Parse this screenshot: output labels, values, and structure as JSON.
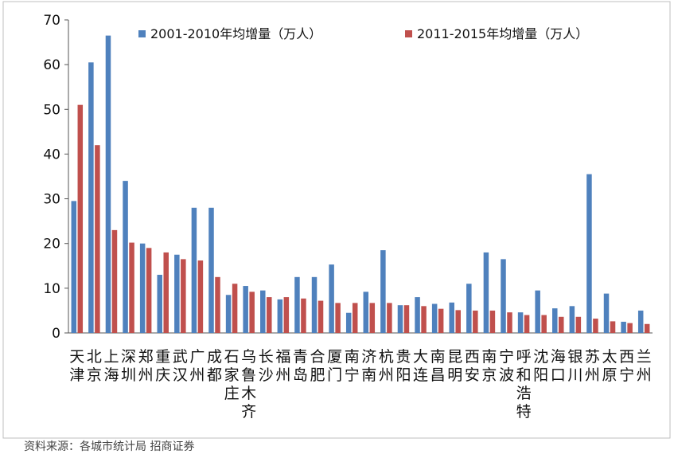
{
  "chart_data": {
    "type": "bar",
    "categories": [
      "天津",
      "北京",
      "上海",
      "深圳",
      "郑州",
      "重庆",
      "武汉",
      "广州",
      "成都",
      "石家庄",
      "乌鲁木齐",
      "长沙",
      "福州",
      "青岛",
      "合肥",
      "厦门",
      "南宁",
      "济南",
      "杭州",
      "贵阳",
      "大连",
      "南昌",
      "昆明",
      "西安",
      "南京",
      "宁波",
      "呼和浩特",
      "沈阳",
      "海口",
      "银川",
      "苏州",
      "太原",
      "西宁",
      "兰州"
    ],
    "series": [
      {
        "name": "2001-2010年均增量（万人）",
        "color": "#4f81bd",
        "values": [
          29.5,
          60.5,
          66.5,
          34,
          20,
          13,
          17.5,
          28,
          28,
          8.5,
          10.5,
          9.5,
          7.5,
          12.5,
          12.5,
          15.3,
          4.5,
          9.2,
          18.5,
          6.2,
          8,
          6.5,
          6.8,
          11,
          18,
          16.5,
          4.6,
          9.5,
          5.5,
          6,
          35.5,
          8.8,
          2.5,
          5
        ]
      },
      {
        "name": "2011-2015年均增量（万人）",
        "color": "#c0504d",
        "values": [
          51,
          42,
          23,
          20.2,
          19,
          18,
          16.5,
          16.2,
          12.5,
          11,
          9.2,
          8,
          8,
          7.7,
          7.2,
          6.7,
          6.7,
          6.7,
          6.7,
          6.2,
          6,
          5.4,
          5.1,
          5,
          5,
          4.6,
          4,
          4,
          3.6,
          3.6,
          3.2,
          2.6,
          2.2,
          2
        ]
      }
    ],
    "ylim": [
      0,
      70
    ],
    "yticks": [
      0,
      10,
      20,
      30,
      40,
      50,
      60,
      70
    ],
    "legend_position": "top"
  },
  "footer_text": "资料来源：各城市统计局  招商证券"
}
